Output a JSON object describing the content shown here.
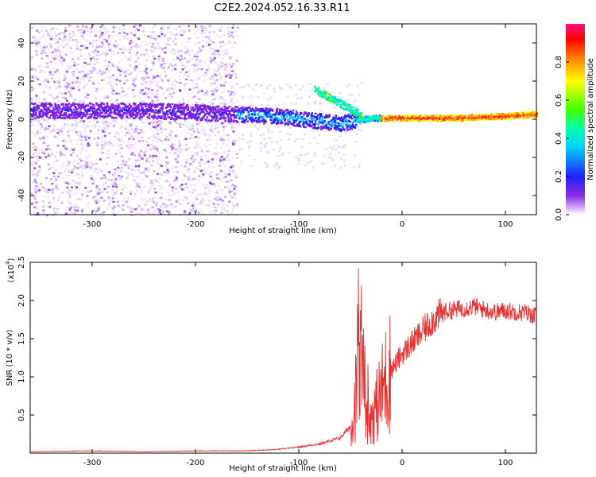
{
  "title": "C2E2.2024.052.16.33.R11",
  "chart_data": [
    {
      "type": "heatmap",
      "xlabel": "Height of straight line (km)",
      "ylabel": "Frequency (Hz)",
      "xlim": [
        -360,
        130
      ],
      "ylim": [
        -50,
        50
      ],
      "xticks": [
        -300,
        -200,
        -100,
        0,
        100
      ],
      "yticks": [
        -40,
        -20,
        0,
        20,
        40
      ],
      "colorbar": {
        "label": "Normalized spectral amplitude",
        "range": [
          0,
          1
        ],
        "ticks": [
          "0.0",
          "0.2",
          "0.4",
          "0.6",
          "0.8"
        ],
        "colormap": "rainbow"
      },
      "ridge_line": {
        "description_note": "dominant frequency track",
        "x": [
          -360,
          -300,
          -250,
          -200,
          -160,
          -120,
          -90,
          -60,
          -45,
          -30,
          0,
          50,
          100,
          130
        ],
        "y": [
          5,
          5,
          5,
          4,
          3,
          2,
          0,
          -2,
          0,
          1,
          1,
          1,
          2,
          3
        ]
      }
    },
    {
      "type": "line",
      "xlabel": "Height of straight line (km)",
      "ylabel": "SNR (10 * v/v)",
      "yscale_label": "(x10",
      "yscale_exp": "4",
      "yscale_suffix": ")",
      "xlim": [
        -360,
        130
      ],
      "ylim": [
        0,
        2.5
      ],
      "xticks": [
        -300,
        -200,
        -100,
        0,
        100
      ],
      "yticks": [
        0.5,
        1.0,
        1.5,
        2.0,
        2.5
      ],
      "series": [
        {
          "color": "#e83030",
          "x": [
            -360,
            -300,
            -250,
            -200,
            -150,
            -120,
            -100,
            -80,
            -60,
            -50,
            -45,
            -42,
            -40,
            -38,
            -35,
            -30,
            -25,
            -20,
            -15,
            -10,
            -5,
            0,
            10,
            20,
            30,
            40,
            50,
            60,
            70,
            80,
            90,
            100,
            110,
            120,
            130
          ],
          "y": [
            0.02,
            0.03,
            0.02,
            0.03,
            0.03,
            0.05,
            0.08,
            0.12,
            0.2,
            0.35,
            0.7,
            1.0,
            1.5,
            0.9,
            0.6,
            0.5,
            0.6,
            0.8,
            1.0,
            1.1,
            1.2,
            1.3,
            1.45,
            1.6,
            1.75,
            1.85,
            1.88,
            1.9,
            1.92,
            1.88,
            1.85,
            1.87,
            1.85,
            1.84,
            1.8
          ]
        }
      ]
    }
  ]
}
